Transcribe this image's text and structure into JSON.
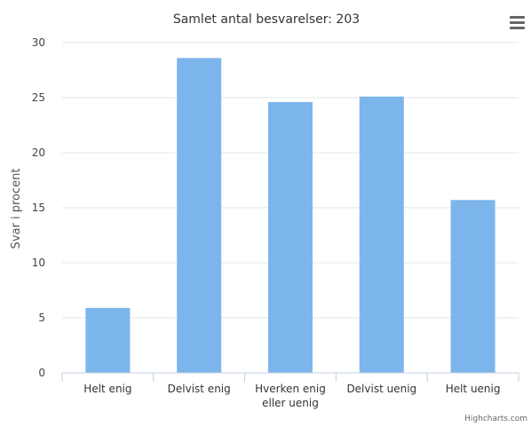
{
  "chart_data": {
    "type": "bar",
    "title": "Samlet antal besvarelser: 203",
    "ylabel": "Svar i procent",
    "xlabel": "",
    "categories": [
      "Helt enig",
      "Delvist enig",
      "Hverken enig eller uenig",
      "Delvist uenig",
      "Helt uenig"
    ],
    "values": [
      5.9,
      28.6,
      24.6,
      25.1,
      15.7
    ],
    "ylim": [
      0,
      30
    ],
    "yticks": [
      0,
      5,
      10,
      15,
      20,
      25,
      30
    ],
    "grid": true,
    "legend": "none",
    "bar_color": "#7cb5ec"
  },
  "credits": "Highcharts.com",
  "menu_icon": "hamburger-menu-icon"
}
